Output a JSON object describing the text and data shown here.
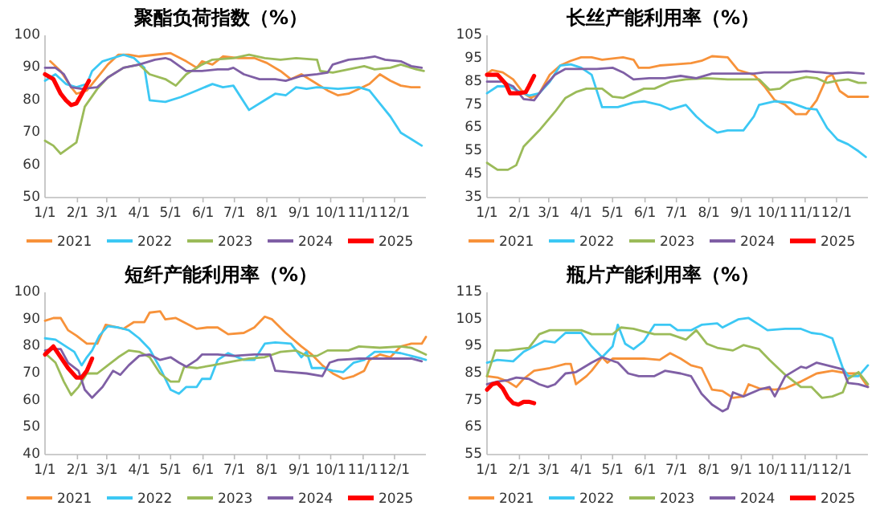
{
  "chart_data": [
    {
      "type": "line",
      "title": "聚酯负荷指数（%）",
      "xlim": [
        "--01-01",
        "--12-31"
      ],
      "ylim": [
        50,
        100
      ],
      "yticks": [
        50,
        60,
        70,
        80,
        90,
        100
      ],
      "grid": false,
      "legend": "bottom",
      "marker": "none",
      "line_style": "solid",
      "xticks": [
        {
          "value": "--01-01",
          "label": "1/1"
        },
        {
          "value": "--02-01",
          "label": "2/1"
        },
        {
          "value": "--03-01",
          "label": "3/1"
        },
        {
          "value": "--04-01",
          "label": "4/1"
        },
        {
          "value": "--05-01",
          "label": "5/1"
        },
        {
          "value": "--06-01",
          "label": "6/1"
        },
        {
          "value": "--07-01",
          "label": "7/1"
        },
        {
          "value": "--08-01",
          "label": "8/1"
        },
        {
          "value": "--09-01",
          "label": "9/1"
        },
        {
          "value": "--10-01",
          "label": "10/1"
        },
        {
          "value": "--11-01",
          "label": "11/1"
        },
        {
          "value": "--12-01",
          "label": "12/1"
        }
      ],
      "series": [
        {
          "name": "2021",
          "color": "#f7923a",
          "x": [
            "--01-06",
            "--01-16",
            "--01-26",
            "--01-31",
            "--02-10",
            "--02-20",
            "--03-02",
            "--03-12",
            "--03-22",
            "--04-01",
            "--04-16",
            "--05-01",
            "--05-16",
            "--05-26",
            "--05-31",
            "--06-10",
            "--06-20",
            "--07-05",
            "--07-20",
            "--08-01",
            "--08-14",
            "--08-24",
            "--09-03",
            "--09-13",
            "--09-28",
            "--10-08",
            "--10-18",
            "--10-28",
            "--11-07",
            "--11-17",
            "--11-27",
            "--12-07",
            "--12-17",
            "--12-25"
          ],
          "values": [
            92,
            89,
            84,
            82,
            83,
            87,
            91,
            94,
            94,
            93.5,
            94,
            94.5,
            92,
            90,
            92,
            91,
            93.5,
            93,
            93,
            91.5,
            89,
            86.5,
            88,
            86,
            83,
            81.5,
            82,
            83.5,
            85,
            88,
            86,
            84.5,
            84,
            84
          ]
        },
        {
          "name": "2022",
          "color": "#3cc8f4",
          "x": [
            "--01-01",
            "--01-11",
            "--01-21",
            "--01-31",
            "--02-10",
            "--02-15",
            "--02-25",
            "--03-07",
            "--03-17",
            "--03-27",
            "--04-06",
            "--04-11",
            "--04-26",
            "--05-11",
            "--05-26",
            "--06-10",
            "--06-20",
            "--06-30",
            "--07-15",
            "--07-30",
            "--08-09",
            "--08-19",
            "--08-29",
            "--09-08",
            "--09-18",
            "--10-08",
            "--10-28",
            "--11-07",
            "--11-17",
            "--11-27",
            "--12-07",
            "--12-17",
            "--12-27"
          ],
          "values": [
            86,
            88,
            85,
            84,
            85,
            89,
            92,
            93,
            94,
            93,
            90,
            80,
            79.5,
            81,
            83,
            85,
            84,
            84.5,
            77,
            80,
            82,
            81.5,
            84,
            83.5,
            84,
            83.5,
            84,
            83,
            79,
            75,
            70,
            68,
            66
          ]
        },
        {
          "name": "2023",
          "color": "#9bbb59",
          "x": [
            "--01-01",
            "--01-09",
            "--01-16",
            "--01-31",
            "--02-08",
            "--02-20",
            "--03-02",
            "--03-17",
            "--04-01",
            "--04-11",
            "--04-26",
            "--05-06",
            "--05-16",
            "--05-31",
            "--06-10",
            "--06-30",
            "--07-15",
            "--07-30",
            "--08-14",
            "--08-29",
            "--09-18",
            "--09-21",
            "--10-03",
            "--10-18",
            "--11-02",
            "--11-12",
            "--11-27",
            "--12-07",
            "--12-22",
            "--12-29"
          ],
          "values": [
            67.5,
            66,
            63.5,
            67,
            78,
            83.5,
            87,
            90,
            91,
            88,
            86.5,
            84.5,
            88,
            91,
            92.5,
            93,
            94,
            93,
            92.5,
            93,
            92.5,
            89,
            88.5,
            89.5,
            90.5,
            89.5,
            90,
            91,
            89.5,
            89
          ]
        },
        {
          "name": "2024",
          "color": "#7f5fa5",
          "x": [
            "--01-01",
            "--01-11",
            "--01-19",
            "--01-26",
            "--02-05",
            "--02-20",
            "--03-02",
            "--03-17",
            "--04-01",
            "--04-16",
            "--04-26",
            "--05-01",
            "--05-16",
            "--05-31",
            "--06-15",
            "--06-25",
            "--06-30",
            "--07-10",
            "--07-25",
            "--08-09",
            "--08-19",
            "--09-03",
            "--09-18",
            "--09-28",
            "--10-03",
            "--10-18",
            "--11-02",
            "--11-12",
            "--11-22",
            "--12-07",
            "--12-17",
            "--12-27"
          ],
          "values": [
            90,
            90,
            88,
            84,
            83.5,
            84,
            87,
            90,
            91,
            92.5,
            93,
            92.5,
            89,
            89,
            89.5,
            89.5,
            90,
            88,
            86.5,
            86.5,
            86,
            87.5,
            88,
            88.5,
            91,
            92.5,
            93,
            93.5,
            92.5,
            92,
            90.5,
            90
          ]
        },
        {
          "name": "2025",
          "color": "#ff0000",
          "x": [
            "--01-01",
            "--01-09",
            "--01-16",
            "--01-21",
            "--01-26",
            "--01-31",
            "--02-07",
            "--02-12"
          ],
          "values": [
            88,
            86.5,
            82,
            80,
            78.5,
            79,
            83,
            86
          ]
        }
      ]
    },
    {
      "type": "line",
      "title": "长丝产能利用率（%）",
      "xlim": [
        "--01-01",
        "--12-31"
      ],
      "ylim": [
        35,
        105
      ],
      "yticks": [
        35,
        45,
        55,
        65,
        75,
        85,
        95,
        105
      ],
      "grid": false,
      "legend": "bottom",
      "marker": "none",
      "line_style": "solid",
      "xticks": [
        {
          "value": "--01-01",
          "label": "1/1"
        },
        {
          "value": "--02-01",
          "label": "2/1"
        },
        {
          "value": "--03-01",
          "label": "3/1"
        },
        {
          "value": "--04-01",
          "label": "4/1"
        },
        {
          "value": "--05-01",
          "label": "5/1"
        },
        {
          "value": "--06-01",
          "label": "6/1"
        },
        {
          "value": "--07-01",
          "label": "7/1"
        },
        {
          "value": "--08-01",
          "label": "8/1"
        },
        {
          "value": "--09-01",
          "label": "9/1"
        },
        {
          "value": "--10-01",
          "label": "10/1"
        },
        {
          "value": "--11-01",
          "label": "11/1"
        },
        {
          "value": "--12-01",
          "label": "12/1"
        }
      ],
      "series": [
        {
          "name": "2021",
          "color": "#f7923a",
          "x": [
            "--01-01",
            "--01-06",
            "--01-16",
            "--01-26",
            "--02-05",
            "--02-12",
            "--02-20",
            "--03-02",
            "--03-12",
            "--03-22",
            "--04-01",
            "--04-11",
            "--04-21",
            "--05-01",
            "--05-11",
            "--05-21",
            "--05-26",
            "--06-05",
            "--06-15",
            "--06-30",
            "--07-15",
            "--07-25",
            "--08-04",
            "--08-19",
            "--08-29",
            "--09-13",
            "--09-23",
            "--10-03",
            "--10-13",
            "--10-23",
            "--11-02",
            "--11-12",
            "--11-22",
            "--11-27",
            "--12-04",
            "--12-12",
            "--12-31"
          ],
          "values": [
            88.5,
            90,
            89,
            86,
            80,
            78,
            80,
            88,
            92,
            94,
            95.5,
            95.5,
            94.5,
            95,
            95.5,
            94.5,
            91,
            91,
            92,
            92.5,
            93,
            94,
            96,
            95.5,
            90,
            88,
            83,
            77,
            75,
            71,
            71,
            77,
            87,
            88,
            81,
            78.5,
            78.5
          ]
        },
        {
          "name": "2022",
          "color": "#3cc8f4",
          "x": [
            "--01-01",
            "--01-11",
            "--01-21",
            "--01-31",
            "--02-10",
            "--02-20",
            "--03-02",
            "--03-12",
            "--03-22",
            "--04-01",
            "--04-11",
            "--04-21",
            "--05-06",
            "--05-21",
            "--05-31",
            "--06-15",
            "--06-25",
            "--07-10",
            "--07-20",
            "--07-30",
            "--08-09",
            "--08-19",
            "--09-03",
            "--09-13",
            "--09-18",
            "--10-03",
            "--10-18",
            "--11-02",
            "--11-12",
            "--11-22",
            "--12-02",
            "--12-12",
            "--12-22",
            "--12-29"
          ],
          "values": [
            80,
            83,
            83,
            81,
            79,
            80,
            85,
            92,
            92.5,
            91,
            88,
            74,
            74,
            76,
            76.5,
            75,
            73,
            75,
            70,
            66,
            63,
            64,
            64,
            70,
            75,
            76.5,
            76,
            73.5,
            73,
            65,
            60,
            58,
            55,
            52.5
          ]
        },
        {
          "name": "2023",
          "color": "#9bbb59",
          "x": [
            "--01-01",
            "--01-11",
            "--01-21",
            "--01-29",
            "--02-05",
            "--02-20",
            "--03-07",
            "--03-17",
            "--03-27",
            "--04-06",
            "--04-21",
            "--05-01",
            "--05-11",
            "--05-21",
            "--05-31",
            "--06-10",
            "--06-25",
            "--07-10",
            "--07-30",
            "--08-19",
            "--09-08",
            "--09-18",
            "--09-28",
            "--10-08",
            "--10-18",
            "--11-02",
            "--11-12",
            "--11-22",
            "--12-02",
            "--12-12",
            "--12-22",
            "--12-29"
          ],
          "values": [
            50,
            47,
            47,
            49,
            57,
            64,
            72,
            78,
            80.5,
            82,
            82,
            78.5,
            78,
            80,
            82,
            82,
            85,
            86,
            86.5,
            86,
            86,
            86,
            81.5,
            82,
            85.5,
            87,
            86.5,
            84.5,
            85.5,
            86,
            84.5,
            84.5
          ]
        },
        {
          "name": "2024",
          "color": "#7f5fa5",
          "x": [
            "--01-01",
            "--01-16",
            "--01-26",
            "--02-05",
            "--02-15",
            "--02-25",
            "--03-07",
            "--03-17",
            "--04-01",
            "--04-16",
            "--05-01",
            "--05-11",
            "--05-21",
            "--06-05",
            "--06-20",
            "--07-05",
            "--07-20",
            "--08-04",
            "--08-29",
            "--09-13",
            "--09-23",
            "--10-18",
            "--11-02",
            "--11-17",
            "--11-27",
            "--12-12",
            "--12-27"
          ],
          "values": [
            85,
            85,
            83,
            77.5,
            77,
            83,
            88,
            90.5,
            90.5,
            90.5,
            91,
            89,
            86,
            86.5,
            86.5,
            87.5,
            86.5,
            88.5,
            88.5,
            88.5,
            89,
            89,
            89.5,
            89,
            88.5,
            89,
            88.5
          ]
        },
        {
          "name": "2025",
          "color": "#ff0000",
          "x": [
            "--01-01",
            "--01-11",
            "--01-19",
            "--01-23",
            "--01-31",
            "--02-07",
            "--02-10",
            "--02-15"
          ],
          "values": [
            88,
            88,
            84,
            80,
            80,
            80.5,
            83,
            87.5
          ]
        }
      ]
    },
    {
      "type": "line",
      "title": "短纤产能利用率（%）",
      "xlim": [
        "--01-01",
        "--12-31"
      ],
      "ylim": [
        40,
        100
      ],
      "yticks": [
        40,
        50,
        60,
        70,
        80,
        90,
        100
      ],
      "grid": false,
      "legend": "bottom",
      "marker": "none",
      "line_style": "solid",
      "xticks": [
        {
          "value": "--01-01",
          "label": "1/1"
        },
        {
          "value": "--02-01",
          "label": "2/1"
        },
        {
          "value": "--03-01",
          "label": "3/1"
        },
        {
          "value": "--04-01",
          "label": "4/1"
        },
        {
          "value": "--05-01",
          "label": "5/1"
        },
        {
          "value": "--06-01",
          "label": "6/1"
        },
        {
          "value": "--07-01",
          "label": "7/1"
        },
        {
          "value": "--08-01",
          "label": "8/1"
        },
        {
          "value": "--09-01",
          "label": "9/1"
        },
        {
          "value": "--10-01",
          "label": "10/1"
        },
        {
          "value": "--11-01",
          "label": "11/1"
        },
        {
          "value": "--12-01",
          "label": "12/1"
        }
      ],
      "series": [
        {
          "name": "2021",
          "color": "#f7923a",
          "x": [
            "--01-01",
            "--01-09",
            "--01-16",
            "--01-23",
            "--01-31",
            "--02-10",
            "--02-20",
            "--02-28",
            "--03-17",
            "--03-27",
            "--04-06",
            "--04-11",
            "--04-21",
            "--04-26",
            "--05-06",
            "--05-16",
            "--05-26",
            "--06-05",
            "--06-15",
            "--06-25",
            "--07-10",
            "--07-20",
            "--07-30",
            "--08-06",
            "--08-19",
            "--09-03",
            "--09-13",
            "--09-23",
            "--10-03",
            "--10-13",
            "--10-23",
            "--11-02",
            "--11-07",
            "--11-17",
            "--11-27",
            "--12-07",
            "--12-17",
            "--12-27",
            "--12-31"
          ],
          "values": [
            89.5,
            90.5,
            90.5,
            86,
            84,
            81,
            81,
            88,
            86.5,
            89,
            89,
            92.5,
            93,
            90,
            90.5,
            88.5,
            86.5,
            87,
            87,
            84.5,
            85,
            87,
            91,
            90,
            85,
            80,
            77,
            73,
            70,
            68,
            69,
            71,
            75,
            77,
            76,
            80,
            81,
            81,
            83.5
          ]
        },
        {
          "name": "2022",
          "color": "#3cc8f4",
          "x": [
            "--01-01",
            "--01-11",
            "--01-21",
            "--01-29",
            "--02-05",
            "--02-10",
            "--02-15",
            "--02-22",
            "--03-02",
            "--03-12",
            "--03-22",
            "--04-01",
            "--04-11",
            "--04-21",
            "--05-01",
            "--05-09",
            "--05-16",
            "--05-26",
            "--05-31",
            "--06-08",
            "--06-15",
            "--06-25",
            "--07-10",
            "--07-20",
            "--07-30",
            "--08-09",
            "--08-24",
            "--09-03",
            "--09-08",
            "--09-13",
            "--09-23",
            "--10-03",
            "--10-13",
            "--10-23",
            "--11-02",
            "--11-12",
            "--11-27",
            "--12-07",
            "--12-17",
            "--12-27",
            "--12-31"
          ],
          "values": [
            83,
            82.5,
            80,
            78,
            73,
            76,
            78.5,
            84,
            87.5,
            87,
            86,
            83,
            79,
            72,
            64,
            62.5,
            65,
            65,
            68,
            68,
            75,
            77.5,
            75,
            75,
            81,
            81.5,
            81,
            76,
            78,
            72,
            72,
            71,
            70.5,
            74,
            75,
            78,
            78,
            77.5,
            76.5,
            75.5,
            75
          ]
        },
        {
          "name": "2023",
          "color": "#9bbb59",
          "x": [
            "--01-01",
            "--01-11",
            "--01-19",
            "--01-26",
            "--02-02",
            "--02-10",
            "--02-20",
            "--03-02",
            "--03-12",
            "--03-22",
            "--04-01",
            "--04-11",
            "--04-21",
            "--05-01",
            "--05-09",
            "--05-14",
            "--05-26",
            "--06-10",
            "--06-30",
            "--07-15",
            "--07-30",
            "--08-14",
            "--08-29",
            "--09-08",
            "--09-18",
            "--09-28",
            "--10-18",
            "--10-28",
            "--11-17",
            "--12-07",
            "--12-17",
            "--12-31"
          ],
          "values": [
            77.5,
            74,
            67,
            62,
            65,
            70,
            70,
            73,
            76,
            78.5,
            78,
            76,
            70,
            67,
            67,
            72.5,
            72,
            73,
            74.5,
            75.5,
            76,
            78,
            78.5,
            76.5,
            76.5,
            78.5,
            78.5,
            80,
            79.5,
            80,
            79.5,
            77
          ]
        },
        {
          "name": "2024",
          "color": "#7f5fa5",
          "x": [
            "--01-01",
            "--01-09",
            "--01-16",
            "--01-23",
            "--02-02",
            "--02-08",
            "--02-15",
            "--02-25",
            "--03-07",
            "--03-14",
            "--03-22",
            "--04-01",
            "--04-11",
            "--04-21",
            "--05-01",
            "--05-09",
            "--05-16",
            "--05-26",
            "--05-31",
            "--06-15",
            "--06-30",
            "--07-20",
            "--08-04",
            "--08-09",
            "--08-24",
            "--09-08",
            "--09-23",
            "--09-30",
            "--10-08",
            "--10-28",
            "--11-27",
            "--12-17",
            "--12-27"
          ],
          "values": [
            78.5,
            79,
            79,
            74,
            71,
            64,
            61,
            65,
            71,
            69.5,
            73,
            76.5,
            77,
            75,
            76,
            74,
            72.5,
            75,
            77,
            77,
            76.5,
            77,
            77,
            71,
            70.5,
            70,
            69,
            74,
            75,
            75.5,
            75.5,
            75.5,
            74.5
          ]
        },
        {
          "name": "2025",
          "color": "#ff0000",
          "x": [
            "--01-01",
            "--01-09",
            "--01-16",
            "--01-23",
            "--01-31",
            "--02-05",
            "--02-10",
            "--02-15"
          ],
          "values": [
            77,
            80,
            76,
            72,
            68.5,
            68.5,
            71,
            75.5
          ]
        }
      ]
    },
    {
      "type": "line",
      "title": "瓶片产能利用率（%）",
      "xlim": [
        "--01-01",
        "--12-31"
      ],
      "ylim": [
        55,
        115
      ],
      "yticks": [
        55,
        65,
        75,
        85,
        95,
        105,
        115
      ],
      "grid": false,
      "legend": "bottom",
      "marker": "none",
      "line_style": "solid",
      "xticks": [
        {
          "value": "--01-01",
          "label": "1/1"
        },
        {
          "value": "--02-01",
          "label": "2/1"
        },
        {
          "value": "--03-01",
          "label": "3/1"
        },
        {
          "value": "--04-01",
          "label": "4/1"
        },
        {
          "value": "--05-01",
          "label": "5/1"
        },
        {
          "value": "--06-01",
          "label": "6/1"
        },
        {
          "value": "--07-01",
          "label": "7/1"
        },
        {
          "value": "--08-01",
          "label": "8/1"
        },
        {
          "value": "--09-01",
          "label": "9/1"
        },
        {
          "value": "--10-01",
          "label": "10/1"
        },
        {
          "value": "--11-01",
          "label": "11/1"
        },
        {
          "value": "--12-01",
          "label": "12/1"
        }
      ],
      "series": [
        {
          "name": "2021",
          "color": "#f7923a",
          "x": [
            "--01-01",
            "--01-11",
            "--01-21",
            "--01-29",
            "--02-05",
            "--02-15",
            "--03-02",
            "--03-17",
            "--03-22",
            "--03-27",
            "--04-06",
            "--04-11",
            "--04-21",
            "--04-26",
            "--05-01",
            "--05-31",
            "--06-15",
            "--06-25",
            "--07-05",
            "--07-15",
            "--07-25",
            "--08-04",
            "--08-14",
            "--08-24",
            "--09-03",
            "--09-08",
            "--09-18",
            "--10-03",
            "--10-13",
            "--10-28",
            "--11-12",
            "--11-27",
            "--12-12",
            "--12-22",
            "--12-31"
          ],
          "values": [
            84,
            83.5,
            82,
            80,
            83,
            86,
            87,
            88.5,
            88.5,
            81,
            84,
            86,
            91,
            89,
            90.5,
            90.5,
            90,
            92.5,
            90.5,
            88,
            87,
            79,
            78.5,
            76,
            76.5,
            81,
            79.5,
            79,
            79.5,
            82,
            85,
            86,
            85,
            85,
            80
          ]
        },
        {
          "name": "2022",
          "color": "#3cc8f4",
          "x": [
            "--01-01",
            "--01-11",
            "--01-26",
            "--02-05",
            "--02-15",
            "--02-25",
            "--03-07",
            "--03-17",
            "--04-01",
            "--04-11",
            "--04-21",
            "--05-01",
            "--05-06",
            "--05-13",
            "--05-21",
            "--05-31",
            "--06-10",
            "--06-25",
            "--07-02",
            "--07-15",
            "--07-25",
            "--08-09",
            "--08-14",
            "--08-29",
            "--09-08",
            "--09-18",
            "--09-26",
            "--10-13",
            "--10-28",
            "--11-07",
            "--11-17",
            "--11-27",
            "--12-07",
            "--12-12",
            "--12-22",
            "--12-31"
          ],
          "values": [
            89,
            90,
            89.5,
            93,
            95,
            97,
            96.5,
            100,
            100,
            95,
            91,
            95,
            103,
            96,
            94,
            97,
            103,
            103,
            101,
            101,
            103,
            103.5,
            102,
            105,
            105.5,
            103,
            101,
            101.5,
            101.5,
            100,
            99.5,
            98,
            87,
            84,
            84,
            88
          ]
        },
        {
          "name": "2023",
          "color": "#9bbb59",
          "x": [
            "--01-01",
            "--01-09",
            "--01-21",
            "--01-31",
            "--02-10",
            "--02-20",
            "--03-02",
            "--03-17",
            "--04-01",
            "--04-11",
            "--05-01",
            "--05-09",
            "--05-21",
            "--05-31",
            "--06-10",
            "--06-25",
            "--07-10",
            "--07-20",
            "--07-30",
            "--08-09",
            "--08-24",
            "--09-03",
            "--09-18",
            "--09-28",
            "--10-13",
            "--10-28",
            "--11-07",
            "--11-17",
            "--11-27",
            "--12-07",
            "--12-12",
            "--12-22",
            "--12-31"
          ],
          "values": [
            84,
            93.5,
            93.5,
            94,
            94.5,
            99.5,
            101,
            101,
            101,
            99.5,
            99.5,
            102,
            101.5,
            100.5,
            99.5,
            99.5,
            97.5,
            101,
            96,
            94.5,
            93.5,
            95.5,
            94,
            90,
            84.5,
            80,
            80,
            76,
            76.5,
            78,
            83,
            85.5,
            81
          ]
        },
        {
          "name": "2024",
          "color": "#7f5fa5",
          "x": [
            "--01-01",
            "--01-11",
            "--01-21",
            "--01-29",
            "--02-10",
            "--02-20",
            "--02-28",
            "--03-07",
            "--03-17",
            "--03-27",
            "--04-11",
            "--04-21",
            "--05-06",
            "--05-16",
            "--05-26",
            "--06-10",
            "--06-20",
            "--07-05",
            "--07-15",
            "--07-25",
            "--08-04",
            "--08-14",
            "--08-19",
            "--08-24",
            "--09-03",
            "--09-18",
            "--09-28",
            "--10-03",
            "--10-13",
            "--10-28",
            "--11-02",
            "--11-12",
            "--11-22",
            "--12-07",
            "--12-12",
            "--12-22",
            "--12-31"
          ],
          "values": [
            81,
            82,
            82.5,
            83.5,
            83,
            81,
            80,
            81,
            85,
            85.5,
            89,
            91,
            89,
            85,
            84,
            84,
            86,
            85,
            84,
            77.5,
            73.5,
            71,
            72,
            78,
            76.5,
            79,
            80,
            76.5,
            84,
            87.5,
            87,
            89,
            88,
            86.5,
            81.5,
            81,
            80
          ]
        },
        {
          "name": "2025",
          "color": "#ff0000",
          "x": [
            "--01-01",
            "--01-06",
            "--01-11",
            "--01-16",
            "--01-21",
            "--01-26",
            "--01-31",
            "--02-05",
            "--02-10",
            "--02-15"
          ],
          "values": [
            79,
            81,
            81.5,
            79.5,
            76,
            74,
            73.5,
            74.5,
            74.5,
            74
          ]
        }
      ]
    }
  ]
}
